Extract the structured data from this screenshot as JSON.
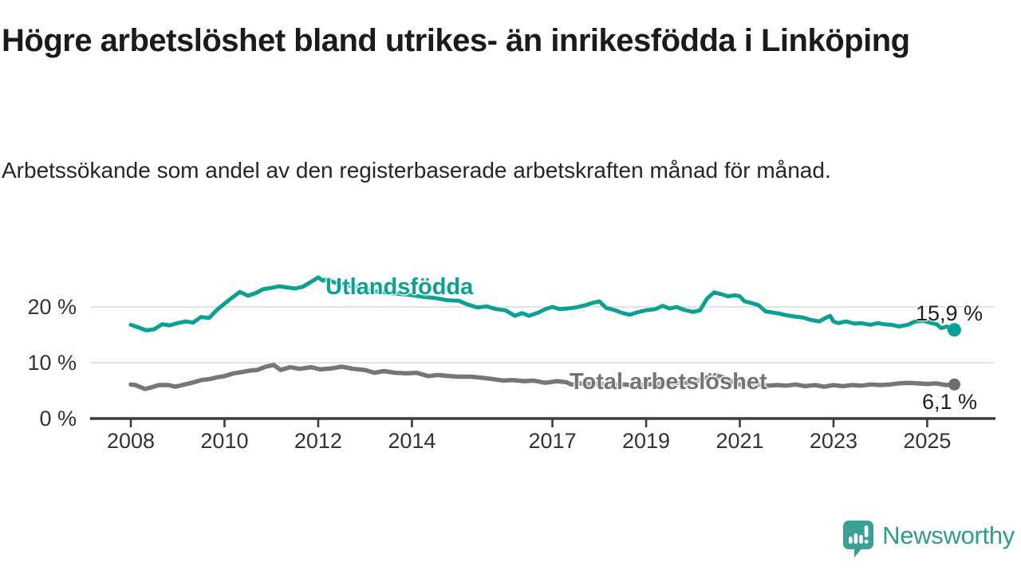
{
  "header": {
    "title": "Högre arbetslöshet bland utrikes- än inrikesfödda i Linköping",
    "subtitle": "Arbetssökande som andel av den registerbaserade arbetskraften månad för månad."
  },
  "chart_data": {
    "type": "line",
    "title": "Högre arbetslöshet bland utrikes- än inrikesfödda i Linköping",
    "xlabel": "",
    "ylabel": "",
    "unit": "%",
    "ylim": [
      0,
      28
    ],
    "xlim": [
      2007.1,
      2026.8
    ],
    "grid": "horizontal",
    "colors": {
      "accent_teal": "#0aa192",
      "line_gray": "#767676",
      "grid_line": "#d8d8d8",
      "axis_line": "#3d3d3d",
      "tick_text": "#333333"
    },
    "y_ticks": [
      {
        "value": 0,
        "label": "0 %"
      },
      {
        "value": 10,
        "label": "10 %"
      },
      {
        "value": 20,
        "label": "20 %"
      }
    ],
    "x_ticks": [
      {
        "value": 2008,
        "label": "2008"
      },
      {
        "value": 2010,
        "label": "2010"
      },
      {
        "value": 2012,
        "label": "2012"
      },
      {
        "value": 2014,
        "label": "2014"
      },
      {
        "value": 2017,
        "label": "2017"
      },
      {
        "value": 2019,
        "label": "2019"
      },
      {
        "value": 2021,
        "label": "2021"
      },
      {
        "value": 2023,
        "label": "2023"
      },
      {
        "value": 2025,
        "label": "2025"
      }
    ],
    "series": [
      {
        "name": "Utlandsfödda",
        "color": "#0aa192",
        "end_label": "15,9 %",
        "end_value": 15.9,
        "points": [
          [
            2008.0,
            16.8
          ],
          [
            2008.17,
            16.3
          ],
          [
            2008.33,
            15.8
          ],
          [
            2008.5,
            16.0
          ],
          [
            2008.67,
            16.9
          ],
          [
            2008.83,
            16.7
          ],
          [
            2009.0,
            17.1
          ],
          [
            2009.17,
            17.4
          ],
          [
            2009.33,
            17.2
          ],
          [
            2009.5,
            18.2
          ],
          [
            2009.67,
            18.0
          ],
          [
            2009.83,
            19.4
          ],
          [
            2010.0,
            20.6
          ],
          [
            2010.17,
            21.7
          ],
          [
            2010.33,
            22.7
          ],
          [
            2010.5,
            22.0
          ],
          [
            2010.67,
            22.5
          ],
          [
            2010.83,
            23.2
          ],
          [
            2011.0,
            23.4
          ],
          [
            2011.17,
            23.7
          ],
          [
            2011.33,
            23.5
          ],
          [
            2011.5,
            23.3
          ],
          [
            2011.67,
            23.6
          ],
          [
            2011.83,
            24.4
          ],
          [
            2012.0,
            25.3
          ],
          [
            2012.1,
            24.7
          ],
          [
            2012.2,
            25.0
          ],
          [
            2012.33,
            24.4
          ],
          [
            2012.5,
            24.1
          ],
          [
            2012.67,
            23.8
          ],
          [
            2012.83,
            23.4
          ],
          [
            2013.0,
            23.1
          ],
          [
            2013.25,
            22.8
          ],
          [
            2013.5,
            22.5
          ],
          [
            2013.75,
            22.3
          ],
          [
            2014.0,
            22.1
          ],
          [
            2014.25,
            21.8
          ],
          [
            2014.5,
            21.6
          ],
          [
            2014.75,
            21.2
          ],
          [
            2015.0,
            21.1
          ],
          [
            2015.2,
            20.4
          ],
          [
            2015.4,
            19.9
          ],
          [
            2015.6,
            20.1
          ],
          [
            2015.8,
            19.6
          ],
          [
            2016.0,
            19.4
          ],
          [
            2016.2,
            18.4
          ],
          [
            2016.35,
            18.9
          ],
          [
            2016.5,
            18.4
          ],
          [
            2016.7,
            19.0
          ],
          [
            2016.85,
            19.6
          ],
          [
            2017.0,
            20.0
          ],
          [
            2017.15,
            19.6
          ],
          [
            2017.3,
            19.7
          ],
          [
            2017.5,
            19.9
          ],
          [
            2017.7,
            20.3
          ],
          [
            2017.85,
            20.7
          ],
          [
            2018.0,
            21.0
          ],
          [
            2018.15,
            19.8
          ],
          [
            2018.3,
            19.5
          ],
          [
            2018.5,
            18.9
          ],
          [
            2018.65,
            18.6
          ],
          [
            2018.8,
            19.0
          ],
          [
            2019.0,
            19.4
          ],
          [
            2019.2,
            19.6
          ],
          [
            2019.35,
            20.2
          ],
          [
            2019.5,
            19.7
          ],
          [
            2019.65,
            20.0
          ],
          [
            2019.8,
            19.5
          ],
          [
            2020.0,
            19.1
          ],
          [
            2020.15,
            19.4
          ],
          [
            2020.3,
            21.5
          ],
          [
            2020.45,
            22.6
          ],
          [
            2020.6,
            22.3
          ],
          [
            2020.75,
            21.9
          ],
          [
            2020.9,
            22.1
          ],
          [
            2021.0,
            21.9
          ],
          [
            2021.1,
            21.0
          ],
          [
            2021.25,
            20.7
          ],
          [
            2021.4,
            20.3
          ],
          [
            2021.55,
            19.2
          ],
          [
            2021.7,
            19.0
          ],
          [
            2021.85,
            18.8
          ],
          [
            2022.0,
            18.5
          ],
          [
            2022.15,
            18.3
          ],
          [
            2022.35,
            18.1
          ],
          [
            2022.5,
            17.7
          ],
          [
            2022.7,
            17.4
          ],
          [
            2022.8,
            17.9
          ],
          [
            2022.93,
            18.4
          ],
          [
            2023.0,
            17.4
          ],
          [
            2023.1,
            17.1
          ],
          [
            2023.27,
            17.4
          ],
          [
            2023.45,
            17.0
          ],
          [
            2023.6,
            17.1
          ],
          [
            2023.78,
            16.8
          ],
          [
            2023.95,
            17.1
          ],
          [
            2024.07,
            16.9
          ],
          [
            2024.24,
            16.8
          ],
          [
            2024.4,
            16.5
          ],
          [
            2024.58,
            16.8
          ],
          [
            2024.75,
            17.4
          ],
          [
            2024.92,
            17.5
          ],
          [
            2025.1,
            17.1
          ],
          [
            2025.2,
            16.9
          ],
          [
            2025.3,
            16.2
          ],
          [
            2025.42,
            16.5
          ],
          [
            2025.5,
            16.0
          ],
          [
            2025.58,
            15.9
          ]
        ]
      },
      {
        "name": "Total arbetslöshet",
        "color": "#767676",
        "end_label": "6,1 %",
        "end_value": 6.1,
        "points": [
          [
            2008.0,
            6.1
          ],
          [
            2008.1,
            6.0
          ],
          [
            2008.3,
            5.3
          ],
          [
            2008.45,
            5.6
          ],
          [
            2008.6,
            6.0
          ],
          [
            2008.8,
            6.0
          ],
          [
            2008.95,
            5.7
          ],
          [
            2009.1,
            6.0
          ],
          [
            2009.3,
            6.4
          ],
          [
            2009.5,
            6.9
          ],
          [
            2009.7,
            7.1
          ],
          [
            2009.85,
            7.4
          ],
          [
            2010.0,
            7.6
          ],
          [
            2010.2,
            8.1
          ],
          [
            2010.35,
            8.3
          ],
          [
            2010.55,
            8.6
          ],
          [
            2010.7,
            8.7
          ],
          [
            2010.88,
            9.3
          ],
          [
            2011.05,
            9.6
          ],
          [
            2011.2,
            8.7
          ],
          [
            2011.4,
            9.2
          ],
          [
            2011.6,
            8.9
          ],
          [
            2011.85,
            9.2
          ],
          [
            2012.05,
            8.8
          ],
          [
            2012.3,
            9.0
          ],
          [
            2012.5,
            9.3
          ],
          [
            2012.75,
            8.9
          ],
          [
            2013.0,
            8.7
          ],
          [
            2013.2,
            8.2
          ],
          [
            2013.4,
            8.5
          ],
          [
            2013.65,
            8.2
          ],
          [
            2013.9,
            8.1
          ],
          [
            2014.1,
            8.2
          ],
          [
            2014.35,
            7.6
          ],
          [
            2014.55,
            7.8
          ],
          [
            2014.8,
            7.6
          ],
          [
            2015.0,
            7.5
          ],
          [
            2015.25,
            7.5
          ],
          [
            2015.5,
            7.3
          ],
          [
            2015.7,
            7.1
          ],
          [
            2015.95,
            6.8
          ],
          [
            2016.15,
            6.9
          ],
          [
            2016.4,
            6.7
          ],
          [
            2016.6,
            6.8
          ],
          [
            2016.85,
            6.4
          ],
          [
            2017.1,
            6.7
          ],
          [
            2017.3,
            6.5
          ],
          [
            2017.4,
            6.1
          ],
          [
            2017.6,
            6.3
          ],
          [
            2017.8,
            6.2
          ],
          [
            2018.0,
            6.2
          ],
          [
            2018.25,
            6.0
          ],
          [
            2018.5,
            6.1
          ],
          [
            2018.75,
            6.0
          ],
          [
            2019.0,
            6.1
          ],
          [
            2019.25,
            6.2
          ],
          [
            2019.5,
            6.3
          ],
          [
            2019.75,
            6.4
          ],
          [
            2020.0,
            6.5
          ],
          [
            2020.3,
            7.4
          ],
          [
            2020.45,
            7.7
          ],
          [
            2020.6,
            7.5
          ],
          [
            2020.8,
            6.8
          ],
          [
            2020.9,
            6.3
          ],
          [
            2021.05,
            6.0
          ],
          [
            2021.2,
            6.4
          ],
          [
            2021.4,
            6.1
          ],
          [
            2021.6,
            5.9
          ],
          [
            2021.8,
            6.0
          ],
          [
            2022.0,
            5.9
          ],
          [
            2022.2,
            6.1
          ],
          [
            2022.4,
            5.8
          ],
          [
            2022.6,
            6.0
          ],
          [
            2022.8,
            5.7
          ],
          [
            2023.0,
            6.0
          ],
          [
            2023.2,
            5.8
          ],
          [
            2023.4,
            6.0
          ],
          [
            2023.6,
            5.9
          ],
          [
            2023.8,
            6.1
          ],
          [
            2024.0,
            6.0
          ],
          [
            2024.2,
            6.1
          ],
          [
            2024.4,
            6.3
          ],
          [
            2024.6,
            6.4
          ],
          [
            2024.8,
            6.3
          ],
          [
            2025.0,
            6.2
          ],
          [
            2025.2,
            6.3
          ],
          [
            2025.4,
            6.0
          ],
          [
            2025.58,
            6.1
          ]
        ]
      }
    ]
  },
  "branding": {
    "wordmark": "Newsworthy",
    "icon": "newsworthy-speech-bubble-bar-chart",
    "icon_color": "#3ba094",
    "wordmark_color": "#2f9a8e"
  }
}
